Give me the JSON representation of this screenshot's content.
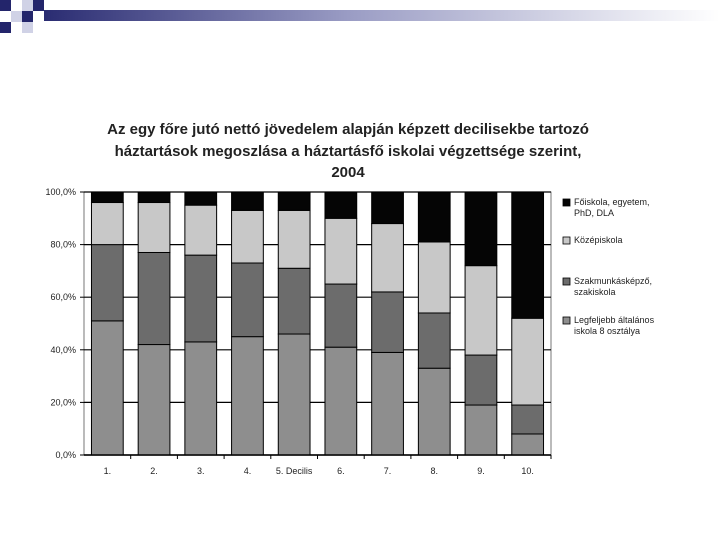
{
  "colors": {
    "deco_dark": "#23256b",
    "deco_light": "#d0d2e6",
    "bg": "#ffffff"
  },
  "chart_data": {
    "type": "bar",
    "stacked": true,
    "title_lines": [
      "Az egy főre jutó nettó jövedelem alapján képzett decilisekbe tartozó",
      "háztartások megoszlása a háztartásfő iskolai végzettsége szerint,",
      "2004"
    ],
    "xlabel": "",
    "ylabel": "",
    "ylim": [
      0,
      100
    ],
    "y_ticks": [
      0,
      20,
      40,
      60,
      80,
      100
    ],
    "y_tick_labels": [
      "0,0%",
      "20,0%",
      "40,0%",
      "60,0%",
      "80,0%",
      "100,0%"
    ],
    "grid": true,
    "legend_position": "right",
    "categories": [
      "1.",
      "2.",
      "3.",
      "4.",
      "5. Decilis",
      "6.",
      "7.",
      "8.",
      "9.",
      "10."
    ],
    "series": [
      {
        "name": "Legfeljebb általános iskola 8 osztálya",
        "legend_lines": [
          "Legfeljebb általános",
          "iskola 8 osztálya"
        ],
        "color": "#8e8e8e",
        "values": [
          51,
          42,
          43,
          45,
          46,
          41,
          39,
          33,
          19,
          8
        ]
      },
      {
        "name": "Szakmunkásképző, szakiskola",
        "legend_lines": [
          "Szakmunkásképző,",
          "szakiskola"
        ],
        "color": "#6c6c6c",
        "values": [
          29,
          35,
          33,
          28,
          25,
          24,
          23,
          21,
          19,
          11
        ]
      },
      {
        "name": "Középiskola",
        "legend_lines": [
          "Középiskola"
        ],
        "color": "#c8c8c8",
        "values": [
          16,
          19,
          19,
          20,
          22,
          25,
          26,
          27,
          34,
          33
        ]
      },
      {
        "name": "Főiskola, egyetem, PhD, DLA",
        "legend_lines": [
          "Főiskola, egyetem,",
          "PhD, DLA"
        ],
        "color": "#050505",
        "values": [
          4,
          4,
          5,
          7,
          7,
          10,
          12,
          19,
          28,
          48
        ]
      }
    ]
  }
}
